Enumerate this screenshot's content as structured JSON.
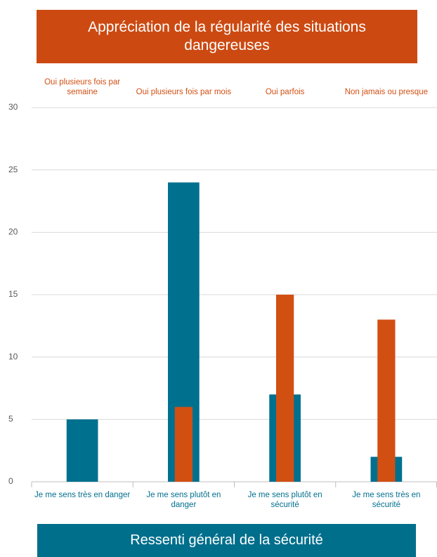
{
  "chart_data": {
    "type": "bar",
    "x2_label": "Appréciation de la régularité des situations dangereuses",
    "x_label": "Ressenti général de la sécurité",
    "categories2": [
      "Oui plusieurs fois par semaine",
      "Oui plusieurs fois par mois",
      "Oui parfois",
      "Non jamais ou presque"
    ],
    "categories": [
      "Je me sens très en danger",
      "Je me sens plutôt en danger",
      "Je me sens plutôt en sécurité",
      "Je me sens très en sécurité"
    ],
    "series": [
      {
        "color": "#00708f",
        "axis": "x",
        "values": [
          5,
          24,
          7,
          2
        ]
      },
      {
        "color": "#d24f12",
        "axis": "x2",
        "values": [
          0,
          6,
          15,
          13
        ]
      }
    ],
    "ylim": [
      0,
      30
    ],
    "yticks": [
      0,
      5,
      10,
      15,
      20,
      25,
      30
    ],
    "grid": true
  }
}
